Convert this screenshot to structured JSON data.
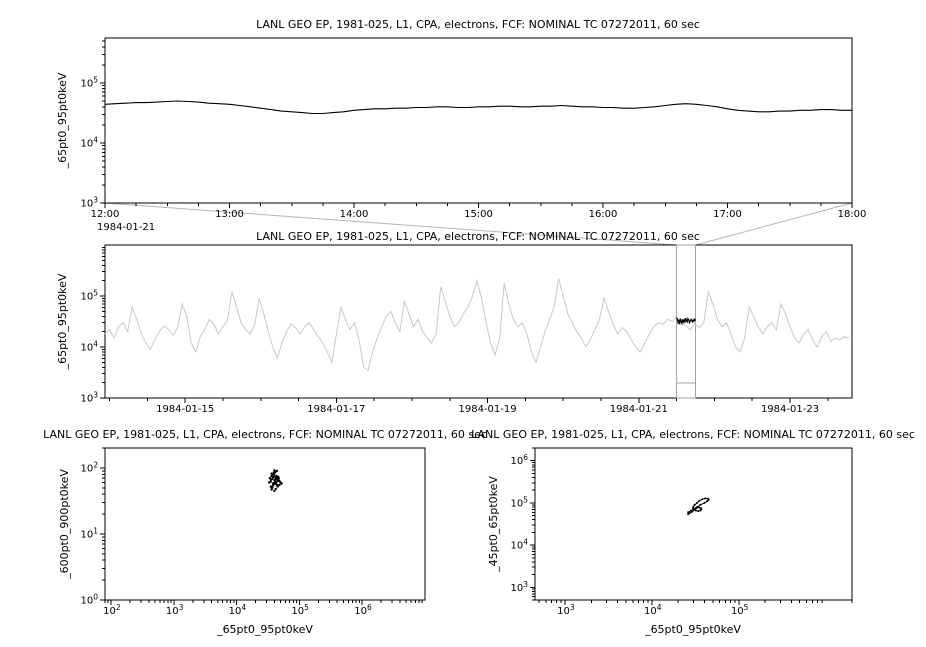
{
  "chart_data": [
    {
      "id": "zoom",
      "type": "line",
      "title": "LANL GEO EP, 1981-025, L1, CPA, electrons, FCF: NOMINAL TC 07272011, 60 sec",
      "ylabel": "_65pt0_95pt0keV",
      "xlabel": "",
      "x_axis": {
        "type": "linear",
        "min": 12,
        "max": 18,
        "minor_step": 0.25,
        "context_label": "1984-01-21",
        "ticks": [
          {
            "v": 12,
            "label": "12:00"
          },
          {
            "v": 13,
            "label": "13:00"
          },
          {
            "v": 14,
            "label": "14:00"
          },
          {
            "v": 15,
            "label": "15:00"
          },
          {
            "v": 16,
            "label": "16:00"
          },
          {
            "v": 17,
            "label": "17:00"
          },
          {
            "v": 18,
            "label": "18:00"
          }
        ]
      },
      "y_axis": {
        "type": "log",
        "min": 1000,
        "max": 560000,
        "tick_exps": [
          5,
          4,
          3
        ]
      },
      "series": [
        {
          "name": "electrons-65-95keV",
          "color": "#000000",
          "width": 1.1,
          "x0": 12,
          "dx": 0.083333,
          "scale": 1000,
          "values": [
            44,
            45,
            46,
            47,
            47,
            48,
            49,
            50,
            49,
            48,
            46,
            45,
            44,
            42,
            40,
            38,
            36,
            34,
            33,
            32,
            31,
            31,
            32,
            33,
            35,
            36,
            37,
            37,
            38,
            38,
            39,
            39,
            40,
            40,
            39,
            39,
            40,
            40,
            41,
            41,
            40,
            40,
            41,
            41,
            42,
            41,
            40,
            40,
            39,
            39,
            38,
            38,
            39,
            40,
            42,
            44,
            45,
            44,
            42,
            40,
            37,
            35,
            34,
            33,
            33,
            34,
            34,
            35,
            35,
            36,
            36,
            35,
            35
          ]
        }
      ]
    },
    {
      "id": "overview",
      "type": "line",
      "title": "LANL GEO EP, 1981-025, L1, CPA, electrons, FCF: NOMINAL TC 07272011, 60 sec",
      "ylabel": "_65pt0_95pt0keV",
      "xlabel": "",
      "x_axis": {
        "type": "linear",
        "min": 13.94,
        "max": 23.82,
        "minor_step": 0.5,
        "ticks": [
          {
            "v": 15,
            "label": "1984-01-15"
          },
          {
            "v": 17,
            "label": "1984-01-17"
          },
          {
            "v": 19,
            "label": "1984-01-19"
          },
          {
            "v": 21,
            "label": "1984-01-21"
          },
          {
            "v": 23,
            "label": "1984-01-23"
          }
        ]
      },
      "y_axis": {
        "type": "log",
        "min": 1000,
        "max": 1000000,
        "tick_exps": [
          5,
          4,
          3
        ]
      },
      "highlight": {
        "x0": 21.5,
        "x1": 21.75,
        "color": "#a0a0a0",
        "connector_color": "#b4b4b4"
      },
      "series": [
        {
          "name": "overview-gray",
          "color": "#c8c8c8",
          "width": 1,
          "x0": 13.94,
          "dx": 0.06,
          "scale": 1000,
          "values": [
            18,
            22,
            15,
            25,
            30,
            20,
            60,
            35,
            18,
            12,
            9,
            14,
            20,
            26,
            22,
            17,
            24,
            70,
            40,
            12,
            8,
            16,
            22,
            35,
            28,
            18,
            25,
            33,
            120,
            60,
            30,
            22,
            18,
            28,
            90,
            45,
            20,
            10,
            6,
            12,
            20,
            28,
            24,
            18,
            25,
            30,
            22,
            16,
            12,
            8,
            5,
            18,
            60,
            35,
            22,
            30,
            14,
            4,
            3.5,
            8,
            15,
            25,
            40,
            50,
            30,
            20,
            80,
            45,
            25,
            35,
            20,
            15,
            12,
            18,
            150,
            80,
            40,
            25,
            30,
            45,
            60,
            100,
            200,
            90,
            30,
            12,
            7,
            15,
            180,
            70,
            35,
            25,
            30,
            18,
            8,
            5,
            10,
            20,
            35,
            60,
            220,
            100,
            45,
            30,
            20,
            15,
            10,
            14,
            22,
            35,
            90,
            50,
            28,
            18,
            24,
            20,
            14,
            10,
            8,
            12,
            18,
            25,
            30,
            28,
            35,
            32,
            38,
            30,
            26,
            22,
            28,
            24,
            30,
            120,
            70,
            35,
            25,
            30,
            18,
            10,
            8,
            15,
            60,
            40,
            25,
            18,
            25,
            30,
            22,
            70,
            45,
            25,
            15,
            12,
            18,
            22,
            14,
            10,
            16,
            20,
            13,
            15,
            14,
            16,
            15
          ]
        },
        {
          "name": "selected-black",
          "color": "#000000",
          "width": 1.2,
          "x0": 21.5,
          "dx": 0.01,
          "scale": 1000,
          "values": [
            38,
            35,
            30,
            33,
            28,
            36,
            32,
            29,
            35,
            31,
            34,
            30,
            37,
            33,
            31,
            36,
            34,
            30,
            32,
            35,
            33,
            31,
            34,
            32,
            35,
            33
          ]
        }
      ]
    },
    {
      "id": "scatter1",
      "type": "scatter",
      "title": "LANL GEO EP, 1981-025, L1, CPA, electrons, FCF: NOMINAL TC 07272011, 60 sec",
      "ylabel": "_600pt0_900pt0keV",
      "xlabel": "_65pt0_95pt0keV",
      "x_axis": {
        "type": "log",
        "min": 80,
        "max": 10000000,
        "tick_exps": [
          2,
          3,
          4,
          5,
          6
        ]
      },
      "y_axis": {
        "type": "log",
        "min": 1,
        "max": 200,
        "tick_exps": [
          2,
          1,
          0
        ]
      },
      "series": [
        {
          "name": "cluster",
          "color": "#000000",
          "marker": 1.2,
          "connect": false,
          "scale": [
            1000,
            1
          ],
          "points": [
            [
              35,
              62
            ],
            [
              38,
              58
            ],
            [
              40,
              65
            ],
            [
              42,
              70
            ],
            [
              36,
              75
            ],
            [
              39,
              80
            ],
            [
              41,
              85
            ],
            [
              43,
              60
            ],
            [
              44,
              55
            ],
            [
              37,
              50
            ],
            [
              40,
              45
            ],
            [
              42,
              48
            ],
            [
              45,
              52
            ],
            [
              46,
              68
            ],
            [
              38,
              72
            ],
            [
              35,
              66
            ],
            [
              50,
              60
            ],
            [
              48,
              63
            ],
            [
              39,
              58
            ],
            [
              41,
              62
            ],
            [
              43,
              67
            ],
            [
              40,
              74
            ],
            [
              37,
              78
            ],
            [
              36,
              82
            ],
            [
              42,
              88
            ],
            [
              44,
              90
            ],
            [
              41,
              57
            ],
            [
              38,
              54
            ],
            [
              45,
              64
            ],
            [
              47,
              69
            ],
            [
              33,
              60
            ],
            [
              34,
              70
            ],
            [
              52,
              58
            ],
            [
              40,
              92
            ],
            [
              39,
              85
            ],
            [
              43,
              76
            ],
            [
              46,
              73
            ],
            [
              48,
              55
            ],
            [
              36,
              47
            ],
            [
              35,
              52
            ],
            [
              41,
              66
            ],
            [
              44,
              71
            ],
            [
              42,
              61
            ],
            [
              37,
              68
            ],
            [
              40,
              59
            ]
          ]
        }
      ]
    },
    {
      "id": "scatter2",
      "type": "scatter",
      "title": "LANL GEO EP, 1981-025, L1, CPA, electrons, FCF: NOMINAL TC 07272011, 60 sec",
      "ylabel": "_45pt0_65pt0keV",
      "xlabel": "_65pt0_95pt0keV",
      "x_axis": {
        "type": "log",
        "min": 450,
        "max": 2000000,
        "tick_exps": [
          3,
          4,
          5
        ]
      },
      "y_axis": {
        "type": "log",
        "min": 500,
        "max": 2000000,
        "tick_exps": [
          6,
          5,
          4,
          3
        ]
      },
      "series": [
        {
          "name": "loop",
          "color": "#000000",
          "marker": 1,
          "connect": true,
          "scale": [
            1000,
            1000
          ],
          "points": [
            [
              26,
              60
            ],
            [
              28,
              65
            ],
            [
              30,
              72
            ],
            [
              33,
              80
            ],
            [
              36,
              90
            ],
            [
              40,
              100
            ],
            [
              43,
              110
            ],
            [
              45,
              118
            ],
            [
              44,
              125
            ],
            [
              41,
              128
            ],
            [
              38,
              122
            ],
            [
              35,
              112
            ],
            [
              33,
              100
            ],
            [
              31,
              90
            ],
            [
              30,
              82
            ],
            [
              29.5,
              76
            ],
            [
              30.5,
              70
            ],
            [
              32,
              66
            ],
            [
              34,
              64
            ],
            [
              36,
              66
            ],
            [
              37,
              70
            ],
            [
              36.5,
              75
            ],
            [
              35,
              78
            ],
            [
              33,
              77
            ],
            [
              31.5,
              72
            ],
            [
              30,
              66
            ],
            [
              28.5,
              61
            ],
            [
              27,
              57
            ],
            [
              26,
              54
            ]
          ]
        }
      ]
    }
  ]
}
